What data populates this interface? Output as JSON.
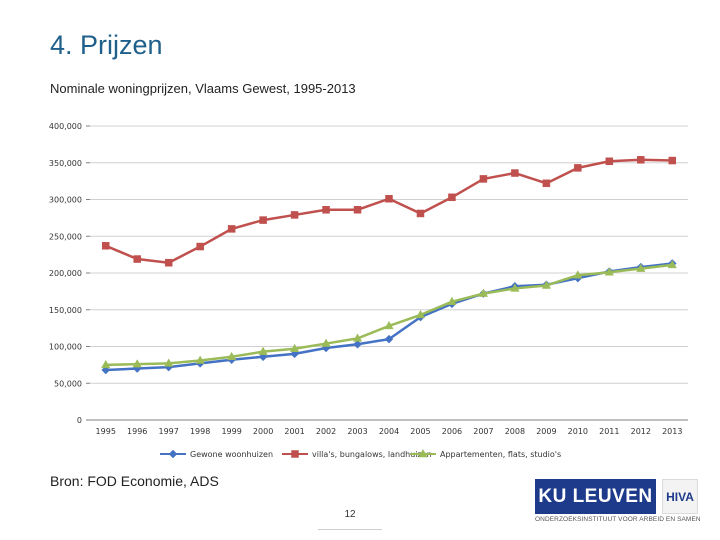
{
  "slide": {
    "title": "4. Prijzen",
    "subtitle": "Nominale woningprijzen, Vlaams Gewest, 1995-2013",
    "source": "Bron: FOD Economie, ADS",
    "page_number": "12"
  },
  "logos": {
    "ku_leuven": "KU LEUVEN",
    "hiva": "HIVA",
    "tagline": "ONDERZOEKSINSTITUUT VOOR ARBEID EN SAMENLEVING"
  },
  "colors": {
    "title": "#1f5f8b",
    "grid": "#d0d0d0",
    "axis": "#808080"
  },
  "chart_data": {
    "type": "line",
    "title": "Nominale woningprijzen, Vlaams Gewest, 1995-2013",
    "xlabel": "",
    "ylabel": "",
    "ylim": [
      0,
      400000
    ],
    "y_ticks": [
      0,
      50000,
      100000,
      150000,
      200000,
      250000,
      300000,
      350000,
      400000
    ],
    "y_tick_labels": [
      "0",
      "50,000",
      "100,000",
      "150,000",
      "200,000",
      "250,000",
      "300,000",
      "350,000",
      "400,000"
    ],
    "categories": [
      "1995",
      "1996",
      "1997",
      "1998",
      "1999",
      "2000",
      "2001",
      "2002",
      "2003",
      "2004",
      "2005",
      "2006",
      "2007",
      "2008",
      "2009",
      "2010",
      "2011",
      "2012",
      "2013"
    ],
    "grid": true,
    "legend_position": "bottom",
    "series": [
      {
        "name": "Gewone woonhuizen",
        "color": "#4472c4",
        "marker": "diamond",
        "values": [
          68000,
          70000,
          72000,
          77000,
          82000,
          86000,
          90000,
          98000,
          103000,
          110000,
          140000,
          158000,
          172000,
          182000,
          184000,
          193000,
          202000,
          208000,
          213000
        ]
      },
      {
        "name": "villa's, bungalows, landhuizen",
        "color": "#c0504d",
        "marker": "square",
        "values": [
          237000,
          219000,
          214000,
          236000,
          260000,
          272000,
          279000,
          286000,
          286000,
          301000,
          281000,
          303000,
          328000,
          336000,
          322000,
          343000,
          352000,
          354000,
          353000
        ]
      },
      {
        "name": "Appartementen, flats, studio's",
        "color": "#9bbb59",
        "marker": "triangle",
        "values": [
          75000,
          76000,
          77000,
          81000,
          86000,
          93000,
          97000,
          104000,
          111000,
          128000,
          143000,
          161000,
          172000,
          179000,
          183000,
          197000,
          201000,
          206000,
          211000
        ]
      }
    ]
  }
}
